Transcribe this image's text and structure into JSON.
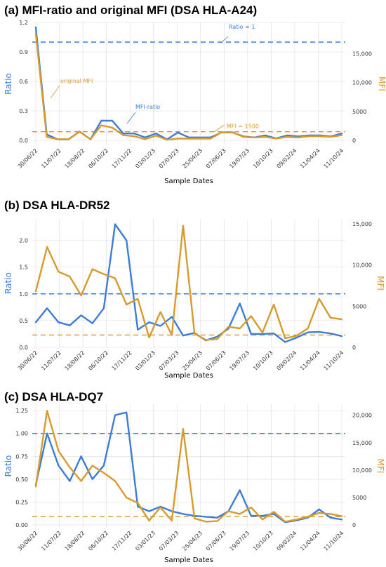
{
  "colors": {
    "ratio": "#3b7dd8",
    "mfi": "#d69a2d",
    "grid": "#dddddd"
  },
  "chart_data": [
    {
      "type": "line",
      "title": "(a) MFI-ratio and original MFI (DSA HLA-A24)",
      "xlabel": "Sample Dates",
      "ylabel": "Ratio",
      "y2label": "MFI",
      "ylim": [
        -0.05,
        1.2
      ],
      "y2lim": [
        -850,
        20400
      ],
      "yticks": [
        "0.0",
        "0.3",
        "0.6",
        "0.9",
        "1.2"
      ],
      "y2ticks": [
        "0",
        "5000",
        "10,000",
        "15,000"
      ],
      "x_tick_labels": [
        "30/06/22",
        "11/07/22",
        "18/08/22",
        "06/10/22",
        "17/11/22",
        "03/01/23",
        "07/03/23",
        "25/04/23",
        "07/06/23",
        "19/07/23",
        "10/10/23",
        "09/02/24",
        "11/04/24",
        "11/10/24"
      ],
      "x_count": 29,
      "series": [
        {
          "name": "MFI-ratio",
          "axis": "left",
          "values": [
            1.15,
            0.06,
            0.01,
            0.01,
            0.09,
            0.01,
            0.2,
            0.2,
            0.07,
            0.07,
            0.03,
            0.07,
            0.01,
            0.08,
            0.03,
            0.03,
            0.03,
            0.08,
            0.08,
            0.04,
            0.03,
            0.05,
            0.02,
            0.05,
            0.04,
            0.05,
            0.05,
            0.04,
            0.07
          ]
        },
        {
          "name": "original MFI",
          "axis": "right",
          "values": [
            18500,
            600,
            200,
            200,
            1500,
            200,
            2600,
            2200,
            900,
            700,
            200,
            800,
            100,
            300,
            300,
            300,
            300,
            1400,
            1400,
            600,
            500,
            600,
            300,
            600,
            500,
            700,
            700,
            600,
            900
          ]
        }
      ],
      "reference_lines": [
        {
          "label": "Ratio = 1",
          "axis": "left",
          "value": 1.0
        },
        {
          "label": "MFI = 1500",
          "axis": "right",
          "value": 1500
        }
      ]
    },
    {
      "type": "line",
      "title": "(b) DSA HLA-DR52",
      "xlabel": "Sample Dates",
      "ylabel": "Ratio",
      "y2label": "MFI",
      "ylim": [
        0,
        2.4
      ],
      "y2lim": [
        0,
        15600
      ],
      "yticks": [
        "0.0",
        "0.5",
        "1.0",
        "1.5",
        "2.0"
      ],
      "y2ticks": [
        "0",
        "5000",
        "10,000",
        "15,000"
      ],
      "x_tick_labels": [
        "30/06/22",
        "11/07/22",
        "18/08/22",
        "06/10/22",
        "17/11/22",
        "03/01/23",
        "07/03/23",
        "25/04/23",
        "07/06/23",
        "19/07/23",
        "10/10/23",
        "09/02/24",
        "11/04/24",
        "11/10/24"
      ],
      "x_count": 28,
      "series": [
        {
          "name": "MFI-ratio",
          "axis": "left",
          "values": [
            0.47,
            0.73,
            0.47,
            0.41,
            0.6,
            0.45,
            0.73,
            2.3,
            2.0,
            0.33,
            0.47,
            0.4,
            0.57,
            0.22,
            0.27,
            0.13,
            0.2,
            0.35,
            0.82,
            0.25,
            0.25,
            0.26,
            0.1,
            0.18,
            0.28,
            0.29,
            0.26,
            0.21
          ]
        },
        {
          "name": "original MFI",
          "axis": "right",
          "values": [
            6800,
            12200,
            9200,
            8600,
            6300,
            9500,
            8900,
            8400,
            5200,
            5900,
            1200,
            4300,
            1500,
            14800,
            1700,
            900,
            1000,
            2500,
            2300,
            3800,
            1800,
            5200,
            1100,
            1400,
            2300,
            5900,
            3600,
            3400
          ]
        }
      ],
      "reference_lines": [
        {
          "label": "",
          "axis": "left",
          "value": 1.0
        },
        {
          "label": "",
          "axis": "right",
          "value": 1500
        }
      ]
    },
    {
      "type": "line",
      "title": "(c) DSA HLA-DQ7",
      "xlabel": "Sample Dates",
      "ylabel": "Ratio",
      "y2label": "MFI",
      "ylim": [
        -0.03,
        1.32
      ],
      "y2lim": [
        -500,
        22000
      ],
      "yticks": [
        "0.00",
        "0.25",
        "0.50",
        "0.75",
        "1.00",
        "1.25"
      ],
      "y2ticks": [
        "0",
        "5000",
        "10,000",
        "15,000",
        "20,000"
      ],
      "x_tick_labels": [
        "30/06/22",
        "11/07/22",
        "18/08/22",
        "06/10/22",
        "17/11/22",
        "03/01/23",
        "07/03/23",
        "25/04/23",
        "07/06/23",
        "19/07/23",
        "10/10/23",
        "09/02/24",
        "11/04/24",
        "11/10/24"
      ],
      "x_count": 28,
      "series": [
        {
          "name": "MFI-ratio",
          "axis": "left",
          "values": [
            0.44,
            1.0,
            0.65,
            0.48,
            0.75,
            0.5,
            0.65,
            1.2,
            1.23,
            0.2,
            0.15,
            0.2,
            0.15,
            0.12,
            0.1,
            0.09,
            0.08,
            0.15,
            0.38,
            0.1,
            0.1,
            0.12,
            0.03,
            0.05,
            0.08,
            0.17,
            0.08,
            0.06
          ]
        },
        {
          "name": "original MFI",
          "axis": "right",
          "values": [
            7000,
            20800,
            13500,
            10500,
            8000,
            10800,
            9500,
            8000,
            5000,
            4000,
            800,
            3200,
            800,
            17500,
            1200,
            600,
            700,
            2500,
            2000,
            3200,
            1000,
            2400,
            600,
            1000,
            1500,
            2200,
            2000,
            1600
          ]
        }
      ],
      "reference_lines": [
        {
          "label": "",
          "axis": "left",
          "value": 1.0
        },
        {
          "label": "",
          "axis": "right",
          "value": 1500
        }
      ]
    }
  ]
}
